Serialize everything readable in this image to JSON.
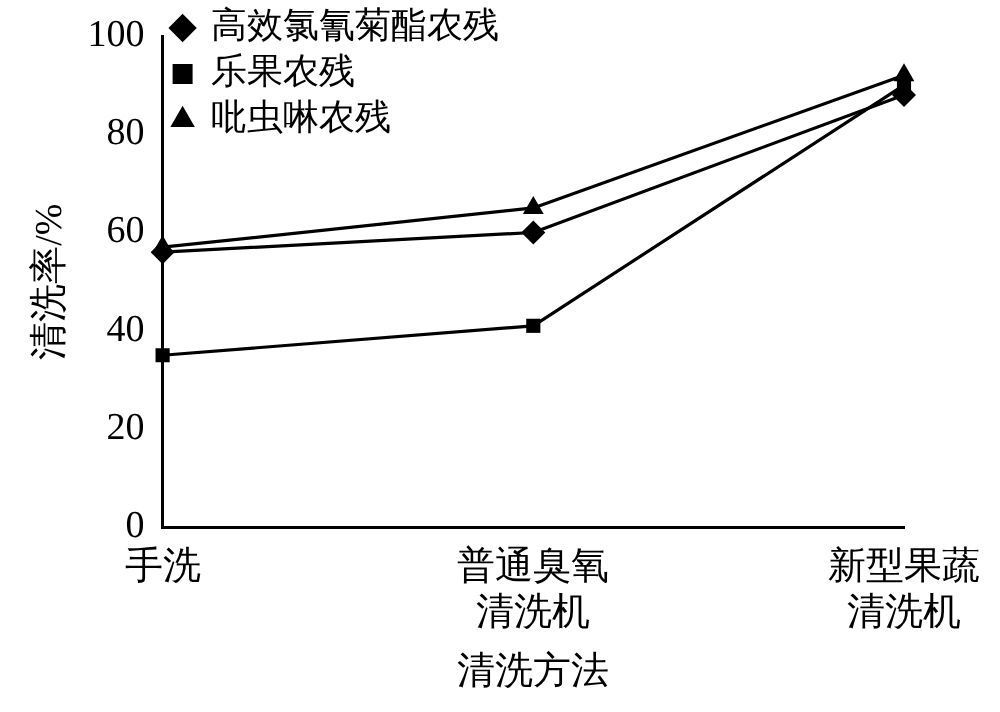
{
  "chart_data": {
    "type": "line",
    "xlabel": "清洗方法",
    "ylabel": "清洗率/%",
    "categories": [
      "手洗",
      "普通臭氧清洗机",
      "新型果蔬清洗机"
    ],
    "series": [
      {
        "name": "高效氯氰菊酯农残",
        "color": "#000000",
        "marker": "diamond",
        "values": [
          56,
          60,
          88
        ]
      },
      {
        "name": "乐果农残",
        "color": "#000000",
        "marker": "square",
        "values": [
          35,
          41,
          90
        ]
      },
      {
        "name": "吡虫啉农残",
        "color": "#000000",
        "marker": "triangle",
        "values": [
          57,
          65,
          92
        ]
      }
    ],
    "ylim": [
      0,
      100
    ],
    "yticks": [
      0,
      20,
      40,
      60,
      80,
      100
    ],
    "grid": false,
    "legend": "top left",
    "line_style": "solid"
  }
}
